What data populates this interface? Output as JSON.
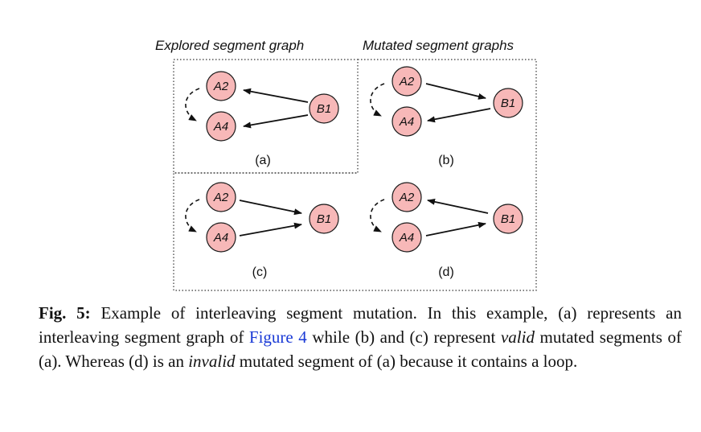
{
  "headings": {
    "explored": "Explored segment graph",
    "mutated": "Mutated segment graphs"
  },
  "nodes": {
    "a2": "A2",
    "a4": "A4",
    "b1": "B1"
  },
  "panels": [
    {
      "id": "a",
      "label": "(a)"
    },
    {
      "id": "b",
      "label": "(b)"
    },
    {
      "id": "c",
      "label": "(c)"
    },
    {
      "id": "d",
      "label": "(d)"
    }
  ],
  "caption": {
    "fig_label": "Fig. 5:",
    "text_1": " Example of interleaving segment mutation. In this example, (a) represents an interleaving segment graph of ",
    "link": "Figure 4",
    "text_2": " while (b) and (c) represent ",
    "valid": "valid",
    "text_3": " mutated segments of (a). Whereas (d) is an ",
    "invalid": "invalid",
    "text_4": " mutated segment of (a) because it contains a loop."
  }
}
